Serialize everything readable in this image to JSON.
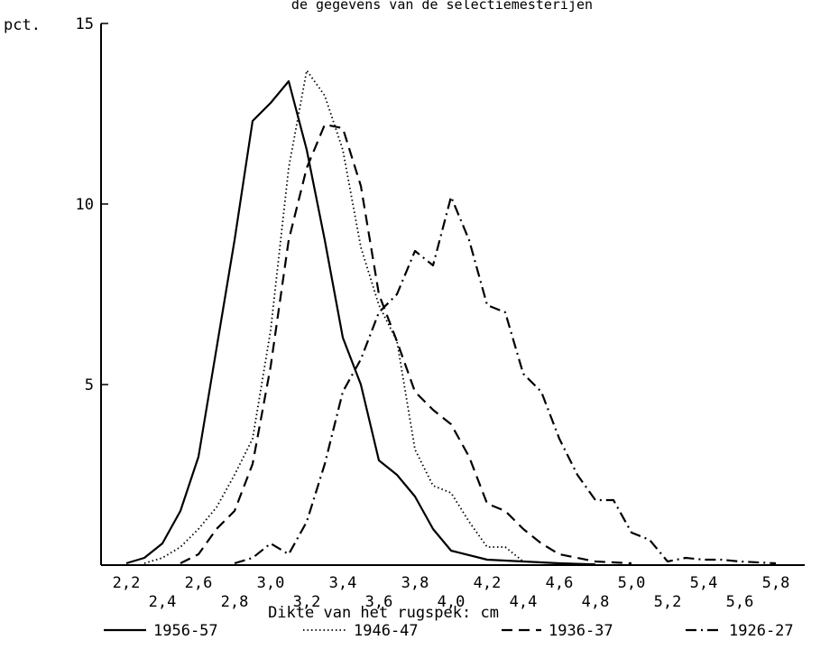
{
  "chart_data": {
    "type": "line",
    "title": "de gegevens van de selectiemesterijen",
    "xlabel": "Dikte van het rugspek: cm",
    "ylabel": "pct.",
    "xlim": [
      2.1,
      6.0
    ],
    "ylim": [
      0,
      15
    ],
    "x_ticks_upper": [
      {
        "value": 2.2,
        "label": "2,2"
      },
      {
        "value": 2.6,
        "label": "2,6"
      },
      {
        "value": 3.0,
        "label": "3,0"
      },
      {
        "value": 3.4,
        "label": "3,4"
      },
      {
        "value": 3.8,
        "label": "3,8"
      },
      {
        "value": 4.2,
        "label": "4,2"
      },
      {
        "value": 4.6,
        "label": "4,6"
      },
      {
        "value": 5.0,
        "label": "5,0"
      },
      {
        "value": 5.4,
        "label": "5,4"
      },
      {
        "value": 5.8,
        "label": "5,8"
      }
    ],
    "x_ticks_lower": [
      {
        "value": 2.4,
        "label": "2,4"
      },
      {
        "value": 2.8,
        "label": "2,8"
      },
      {
        "value": 3.2,
        "label": "3,2"
      },
      {
        "value": 3.6,
        "label": "3,6"
      },
      {
        "value": 4.0,
        "label": "4,0"
      },
      {
        "value": 4.4,
        "label": "4,4"
      },
      {
        "value": 4.8,
        "label": "4,8"
      },
      {
        "value": 5.2,
        "label": "5,2"
      },
      {
        "value": 5.6,
        "label": "5,6"
      }
    ],
    "y_ticks": [
      {
        "value": 5,
        "label": "5"
      },
      {
        "value": 10,
        "label": "10"
      },
      {
        "value": 15,
        "label": "15"
      }
    ],
    "series": [
      {
        "name": "1956-57",
        "style": "solid",
        "points": [
          [
            2.2,
            0.05
          ],
          [
            2.3,
            0.2
          ],
          [
            2.4,
            0.6
          ],
          [
            2.5,
            1.5
          ],
          [
            2.6,
            3.0
          ],
          [
            2.7,
            6.0
          ],
          [
            2.8,
            9.0
          ],
          [
            2.9,
            12.3
          ],
          [
            3.0,
            12.8
          ],
          [
            3.1,
            13.4
          ],
          [
            3.2,
            11.5
          ],
          [
            3.3,
            9.0
          ],
          [
            3.4,
            6.3
          ],
          [
            3.5,
            5.0
          ],
          [
            3.6,
            2.9
          ],
          [
            3.7,
            2.5
          ],
          [
            3.8,
            1.9
          ],
          [
            3.9,
            1.0
          ],
          [
            4.0,
            0.4
          ],
          [
            4.2,
            0.15
          ],
          [
            4.4,
            0.1
          ],
          [
            4.6,
            0.05
          ],
          [
            4.8,
            0.02
          ]
        ]
      },
      {
        "name": "1946-47",
        "style": "dotted",
        "points": [
          [
            2.3,
            0.05
          ],
          [
            2.4,
            0.2
          ],
          [
            2.5,
            0.5
          ],
          [
            2.6,
            1.0
          ],
          [
            2.7,
            1.6
          ],
          [
            2.8,
            2.5
          ],
          [
            2.9,
            3.5
          ],
          [
            3.0,
            6.5
          ],
          [
            3.1,
            11.0
          ],
          [
            3.2,
            13.7
          ],
          [
            3.3,
            13.0
          ],
          [
            3.4,
            11.5
          ],
          [
            3.5,
            8.8
          ],
          [
            3.6,
            7.2
          ],
          [
            3.7,
            6.2
          ],
          [
            3.8,
            3.2
          ],
          [
            3.9,
            2.2
          ],
          [
            4.0,
            2.0
          ],
          [
            4.1,
            1.2
          ],
          [
            4.2,
            0.5
          ],
          [
            4.3,
            0.5
          ],
          [
            4.4,
            0.1
          ],
          [
            4.6,
            0.05
          ]
        ]
      },
      {
        "name": "1936-37",
        "style": "dashed",
        "points": [
          [
            2.5,
            0.05
          ],
          [
            2.6,
            0.3
          ],
          [
            2.7,
            1.0
          ],
          [
            2.8,
            1.5
          ],
          [
            2.9,
            2.8
          ],
          [
            3.0,
            5.5
          ],
          [
            3.1,
            9.0
          ],
          [
            3.2,
            11.0
          ],
          [
            3.3,
            12.2
          ],
          [
            3.4,
            12.1
          ],
          [
            3.5,
            10.5
          ],
          [
            3.6,
            7.5
          ],
          [
            3.7,
            6.2
          ],
          [
            3.8,
            4.8
          ],
          [
            3.9,
            4.3
          ],
          [
            4.0,
            3.9
          ],
          [
            4.1,
            3.0
          ],
          [
            4.2,
            1.7
          ],
          [
            4.3,
            1.5
          ],
          [
            4.4,
            1.0
          ],
          [
            4.5,
            0.6
          ],
          [
            4.6,
            0.3
          ],
          [
            4.8,
            0.1
          ],
          [
            5.0,
            0.05
          ]
        ]
      },
      {
        "name": "1926-27",
        "style": "dash-dot",
        "points": [
          [
            2.8,
            0.05
          ],
          [
            2.9,
            0.2
          ],
          [
            3.0,
            0.6
          ],
          [
            3.1,
            0.3
          ],
          [
            3.2,
            1.2
          ],
          [
            3.3,
            2.8
          ],
          [
            3.4,
            4.8
          ],
          [
            3.5,
            5.7
          ],
          [
            3.6,
            7.0
          ],
          [
            3.7,
            7.5
          ],
          [
            3.8,
            8.7
          ],
          [
            3.9,
            8.3
          ],
          [
            4.0,
            10.2
          ],
          [
            4.1,
            9.0
          ],
          [
            4.2,
            7.2
          ],
          [
            4.3,
            7.0
          ],
          [
            4.4,
            5.3
          ],
          [
            4.5,
            4.8
          ],
          [
            4.6,
            3.5
          ],
          [
            4.7,
            2.5
          ],
          [
            4.8,
            1.8
          ],
          [
            4.9,
            1.8
          ],
          [
            5.0,
            0.9
          ],
          [
            5.1,
            0.7
          ],
          [
            5.2,
            0.1
          ],
          [
            5.3,
            0.2
          ],
          [
            5.4,
            0.15
          ],
          [
            5.5,
            0.15
          ],
          [
            5.6,
            0.1
          ],
          [
            5.8,
            0.05
          ]
        ]
      }
    ],
    "legend_position": "bottom"
  }
}
